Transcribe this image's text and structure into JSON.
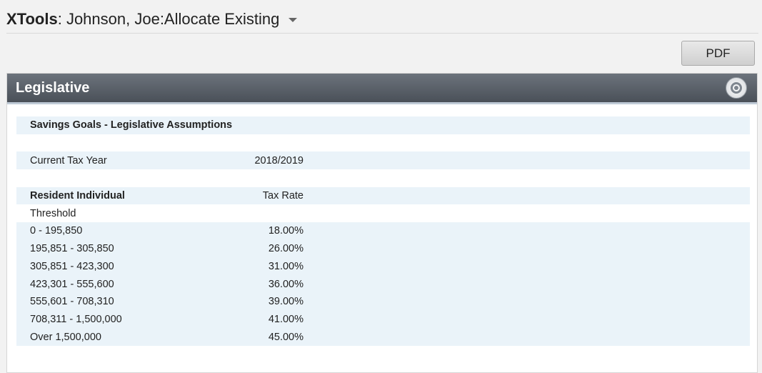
{
  "header": {
    "brand": "XTools",
    "title": ": Johnson, Joe:Allocate Existing"
  },
  "toolbar": {
    "pdf_label": "PDF"
  },
  "panel": {
    "title": "Legislative",
    "section_title": "Savings Goals - Legislative Assumptions",
    "tax_year_label": "Current Tax Year",
    "tax_year_value": "2018/2019",
    "col_individual": "Resident Individual",
    "col_rate": "Tax Rate",
    "threshold_label": "Threshold",
    "brackets": [
      {
        "range": "0 - 195,850",
        "rate": "18.00%"
      },
      {
        "range": "195,851 - 305,850",
        "rate": "26.00%"
      },
      {
        "range": "305,851 - 423,300",
        "rate": "31.00%"
      },
      {
        "range": "423,301 - 555,600",
        "rate": "36.00%"
      },
      {
        "range": "555,601 - 708,310",
        "rate": "39.00%"
      },
      {
        "range": "708,311 - 1,500,000",
        "rate": "41.00%"
      },
      {
        "range": "Over 1,500,000",
        "rate": "45.00%"
      }
    ],
    "settings_icon": "gear-icon"
  }
}
